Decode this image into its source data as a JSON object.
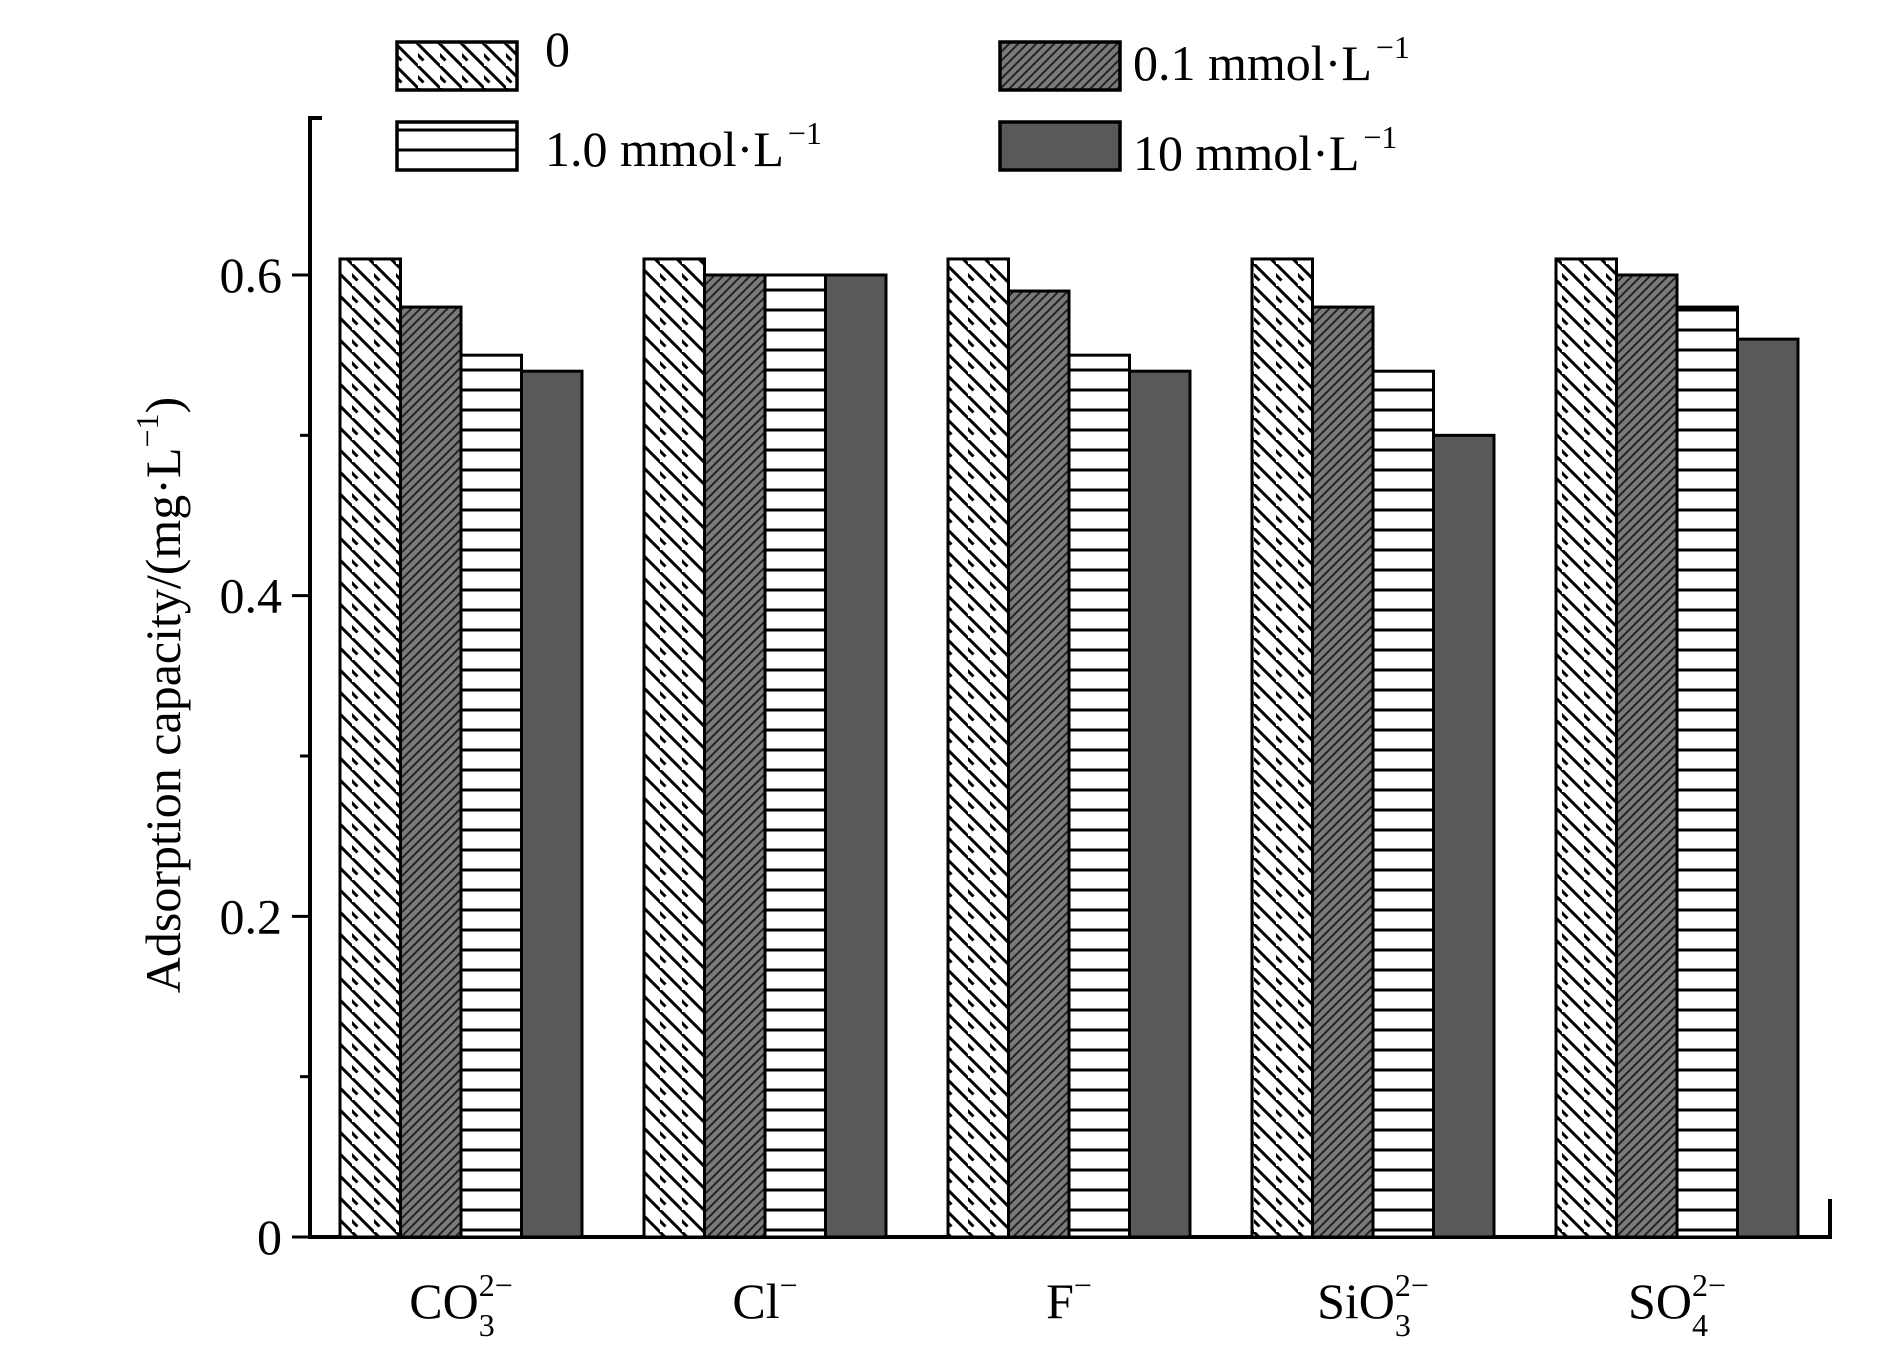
{
  "chart_data": {
    "type": "bar",
    "title": "",
    "xlabel": "",
    "ylabel": {
      "text": "Adsorption capacity/(mg·L",
      "sup": "−1",
      "close": ")"
    },
    "ylim": [
      0,
      0.7
    ],
    "yticks": [
      {
        "value": 0,
        "label": "0"
      },
      {
        "value": 0.2,
        "label": "0.2"
      },
      {
        "value": 0.4,
        "label": "0.4"
      },
      {
        "value": 0.6,
        "label": "0.6"
      }
    ],
    "minor_yticks": [
      0.1,
      0.3,
      0.5
    ],
    "categories": [
      {
        "base": "CO",
        "sub": "3",
        "sup": "2−"
      },
      {
        "base": "Cl",
        "sub": "",
        "sup": "−"
      },
      {
        "base": "F",
        "sub": "",
        "sup": "−"
      },
      {
        "base": "SiO",
        "sub": "3",
        "sup": "2−"
      },
      {
        "base": "SO",
        "sub": "4",
        "sup": "2−"
      }
    ],
    "series": [
      {
        "name": "0",
        "label": {
          "text": "0",
          "sup": ""
        },
        "pattern": "diag-back",
        "values": [
          0.61,
          0.61,
          0.61,
          0.61,
          0.61
        ]
      },
      {
        "name": "0.1 mmol·L−1",
        "label": {
          "text": "0.1 mmol·L",
          "sup": "−1"
        },
        "pattern": "diag-dense",
        "values": [
          0.58,
          0.6,
          0.59,
          0.58,
          0.6
        ]
      },
      {
        "name": "1.0 mmol·L−1",
        "label": {
          "text": "1.0 mmol·L",
          "sup": "−1"
        },
        "pattern": "horizontal",
        "values": [
          0.55,
          0.6,
          0.55,
          0.54,
          0.58
        ]
      },
      {
        "name": "10 mmol·L−1",
        "label": {
          "text": "10 mmol·L",
          "sup": "−1"
        },
        "pattern": "solid",
        "values": [
          0.54,
          0.6,
          0.54,
          0.5,
          0.56
        ]
      }
    ],
    "legend": "top",
    "grid": false,
    "colors": {
      "solid": "#595959",
      "dense": "#7a7a7a",
      "stroke": "#000000",
      "bg": "#ffffff"
    }
  }
}
